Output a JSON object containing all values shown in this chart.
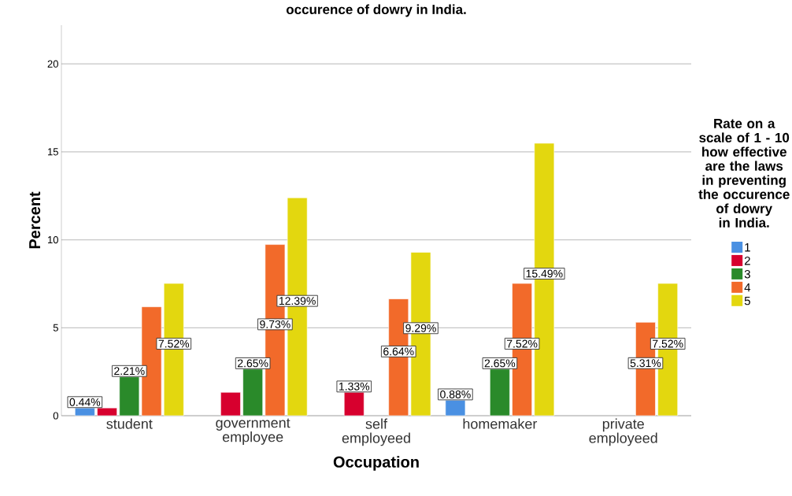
{
  "chart_data": {
    "type": "bar",
    "title": "occurence of dowry in India.",
    "xlabel": "Occupation",
    "ylabel": "Percent",
    "legend_title": "Rate on a scale of 1 - 10 how effective are the laws in preventing the occurence of dowry in India.",
    "categories": [
      "student",
      "government employee",
      "self employeed",
      "homemaker",
      "private employeed"
    ],
    "series": [
      {
        "name": "1",
        "color": "#4a90e2",
        "values": [
          0.44,
          null,
          null,
          0.88,
          null
        ],
        "value_labels": [
          "0.44%",
          null,
          null,
          "0.88%",
          null
        ]
      },
      {
        "name": "2",
        "color": "#d7002e",
        "values": [
          0.44,
          1.33,
          1.33,
          null,
          null
        ],
        "value_labels": [
          null,
          null,
          "1.33%",
          null,
          null
        ]
      },
      {
        "name": "3",
        "color": "#2a8a2a",
        "values": [
          2.21,
          2.65,
          null,
          2.65,
          null
        ],
        "value_labels": [
          "2.21%",
          "2.65%",
          null,
          "2.65%",
          null
        ]
      },
      {
        "name": "4",
        "color": "#f26a2a",
        "values": [
          6.19,
          9.73,
          6.64,
          7.52,
          5.31
        ],
        "value_labels": [
          null,
          "9.73%",
          "6.64%",
          "7.52%",
          "5.31%"
        ]
      },
      {
        "name": "5",
        "color": "#e3d70f",
        "values": [
          7.52,
          12.39,
          9.29,
          15.49,
          7.52
        ],
        "value_labels": [
          "7.52%",
          "12.39%",
          "9.29%",
          "15.49%",
          "7.52%"
        ]
      }
    ],
    "ylim": [
      0,
      22.2
    ],
    "yticks": [
      0,
      5,
      10,
      15,
      20
    ],
    "grid": "y",
    "legend": "right"
  }
}
